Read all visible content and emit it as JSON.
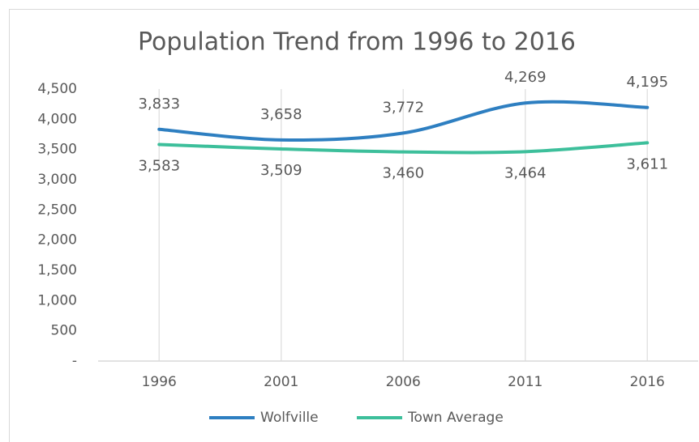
{
  "chart_data": {
    "type": "line",
    "title": "Population Trend from 1996 to 2016",
    "categories": [
      "1996",
      "2001",
      "2006",
      "2011",
      "2016"
    ],
    "series": [
      {
        "name": "Wolfville",
        "color": "#2e7fc1",
        "values": [
          3833,
          3658,
          3772,
          4269,
          4195
        ],
        "value_labels": [
          "3,833",
          "3,658",
          "3,772",
          "4,269",
          "4,195"
        ]
      },
      {
        "name": "Town Average",
        "color": "#3dbf9b",
        "values": [
          3583,
          3509,
          3460,
          3464,
          3611
        ],
        "value_labels": [
          "3,583",
          "3,509",
          "3,460",
          "3,464",
          "3,611"
        ]
      }
    ],
    "ylim": [
      0,
      4500
    ],
    "yticks": [
      {
        "value": 0,
        "label": "-"
      },
      500,
      {
        "value": 1000,
        "label": "1,000"
      },
      {
        "value": 1500,
        "label": "1,500"
      },
      {
        "value": 2000,
        "label": "2,000"
      },
      {
        "value": 2500,
        "label": "2,500"
      },
      {
        "value": 3000,
        "label": "3,000"
      },
      {
        "value": 3500,
        "label": "3,500"
      },
      {
        "value": 4000,
        "label": "4,000"
      },
      {
        "value": 4500,
        "label": "4,500"
      }
    ],
    "grid": true,
    "legend": "bottom"
  }
}
